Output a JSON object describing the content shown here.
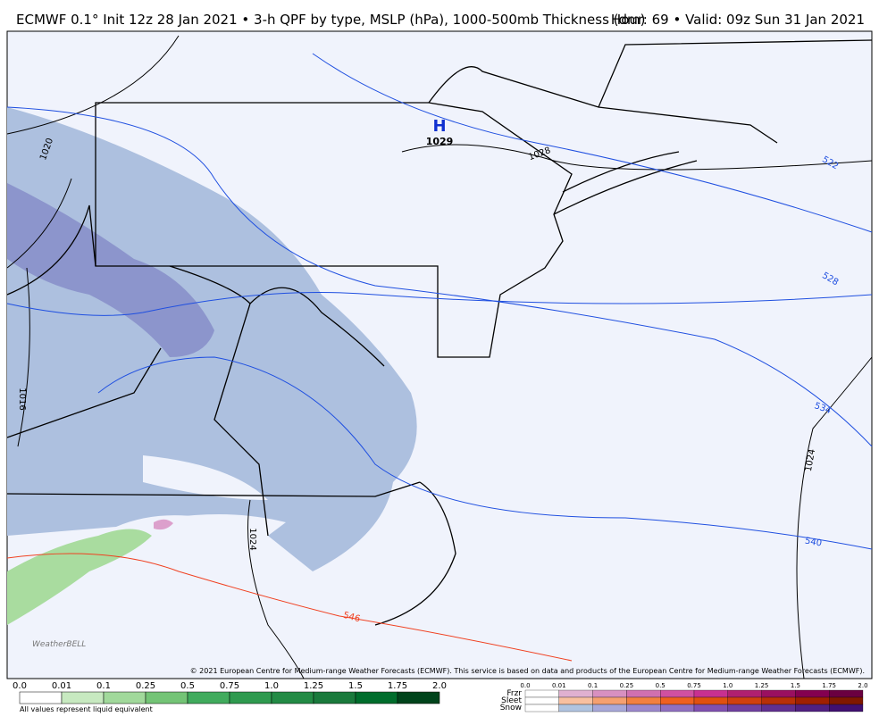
{
  "header": {
    "title": "ECMWF 0.1° Init 12z 28 Jan 2021 • 3-h QPF by type, MSLP (hPa), 1000-500mb Thickness (dm)",
    "valid": "Hour: 69 • Valid: 09z Sun 31 Jan 2021"
  },
  "map": {
    "high": {
      "symbol": "H",
      "pressure": "1029"
    },
    "isobar_labels": [
      "1020",
      "1016",
      "1028",
      "1024",
      "1024"
    ],
    "thickness_labels": [
      "522",
      "528",
      "534",
      "540",
      "546"
    ],
    "logo": "WeatherBELL",
    "copyright": "© 2021 European Centre for Medium-range Weather Forecasts (ECMWF). This service is based on data and products of the European Centre for Medium-range Weather Forecasts (ECMWF)."
  },
  "legend": {
    "rain": {
      "ticks": [
        "0.0",
        "0.01",
        "0.1",
        "0.25",
        "0.5",
        "0.75",
        "1.0",
        "1.25",
        "1.5",
        "1.75",
        "2.0"
      ],
      "note": "All values represent liquid equivalent"
    },
    "types": {
      "rows": [
        "Frzr",
        "Sleet",
        "Snow"
      ],
      "ticks": [
        "0.0",
        "0.01",
        "0.1",
        "0.25",
        "0.5",
        "0.75",
        "1.0",
        "1.25",
        "1.5",
        "1.75",
        "2.0"
      ]
    }
  }
}
